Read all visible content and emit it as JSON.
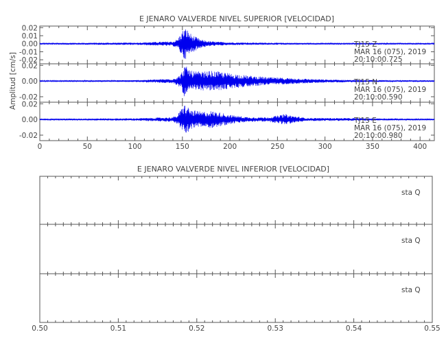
{
  "chart_data": [
    {
      "type": "line",
      "title": "E JENARO VALVERDE NIVEL SUPERIOR [VELOCIDAD]",
      "ylabel": "Amplitud [cm/s]",
      "xlabel": "",
      "xlim": [
        0,
        415
      ],
      "x_ticks": [
        "0",
        "50",
        "100",
        "150",
        "200",
        "250",
        "300",
        "350",
        "400"
      ],
      "line_color": "#0000ee",
      "panels": [
        {
          "ylim": [
            -0.025,
            0.022
          ],
          "y_ticks": [
            "0.02",
            "0.01",
            "0.00",
            "-0.01",
            "-0.02"
          ],
          "annotation": [
            "TJ15   Z",
            "MAR 16 (075), 2019",
            "20:10:00.725"
          ],
          "series": {
            "x": [
              0,
              100,
              140,
              145,
              148,
              150,
              152,
              155,
              158,
              160,
              165,
              170,
              180,
              200,
              250,
              300,
              350,
              415
            ],
            "envelope": [
              0.001,
              0.0015,
              0.003,
              0.006,
              0.012,
              0.016,
              0.02,
              0.018,
              0.014,
              0.011,
              0.008,
              0.005,
              0.003,
              0.0018,
              0.0012,
              0.001,
              0.001,
              0.001
            ]
          }
        },
        {
          "ylim": [
            -0.027,
            0.022
          ],
          "y_ticks": [
            "0.02",
            "0.00",
            "-0.02"
          ],
          "annotation": [
            "TJ15   N",
            "MAR 16 (075), 2019",
            "20:10:00.590"
          ],
          "series": {
            "x": [
              0,
              100,
              140,
              148,
              150,
              152,
              155,
              160,
              170,
              180,
              190,
              200,
              220,
              240,
              260,
              280,
              300,
              350,
              415
            ],
            "envelope": [
              0.0008,
              0.0012,
              0.003,
              0.008,
              0.014,
              0.02,
              0.018,
              0.013,
              0.012,
              0.013,
              0.012,
              0.01,
              0.007,
              0.005,
              0.004,
              0.003,
              0.002,
              0.0012,
              0.001
            ]
          }
        },
        {
          "ylim": [
            -0.027,
            0.022
          ],
          "y_ticks": [
            "0.02",
            "0.00",
            "-0.02"
          ],
          "annotation": [
            "TJ15   E",
            "MAR 16 (075), 2019",
            "20:10:00.980"
          ],
          "series": {
            "x": [
              0,
              100,
              140,
              145,
              150,
              152,
              155,
              160,
              170,
              180,
              190,
              200,
              220,
              240,
              250,
              258,
              265,
              280,
              300,
              350,
              415
            ],
            "envelope": [
              0.001,
              0.0015,
              0.003,
              0.006,
              0.016,
              0.02,
              0.017,
              0.012,
              0.01,
              0.011,
              0.009,
              0.006,
              0.003,
              0.003,
              0.005,
              0.007,
              0.005,
              0.002,
              0.002,
              0.0015,
              0.001
            ]
          }
        }
      ]
    },
    {
      "type": "line",
      "title": "E JENARO VALVERDE NIVEL INFERIOR [VELOCIDAD]",
      "xlabel": "",
      "ylabel": "",
      "xlim": [
        0.5,
        0.55
      ],
      "x_ticks": [
        "0.50",
        "0.51",
        "0.52",
        "0.53",
        "0.54",
        "0.55"
      ],
      "panels": [
        {
          "annotation": "sta   Q"
        },
        {
          "annotation": "sta   Q"
        },
        {
          "annotation": "sta   Q"
        }
      ]
    }
  ]
}
